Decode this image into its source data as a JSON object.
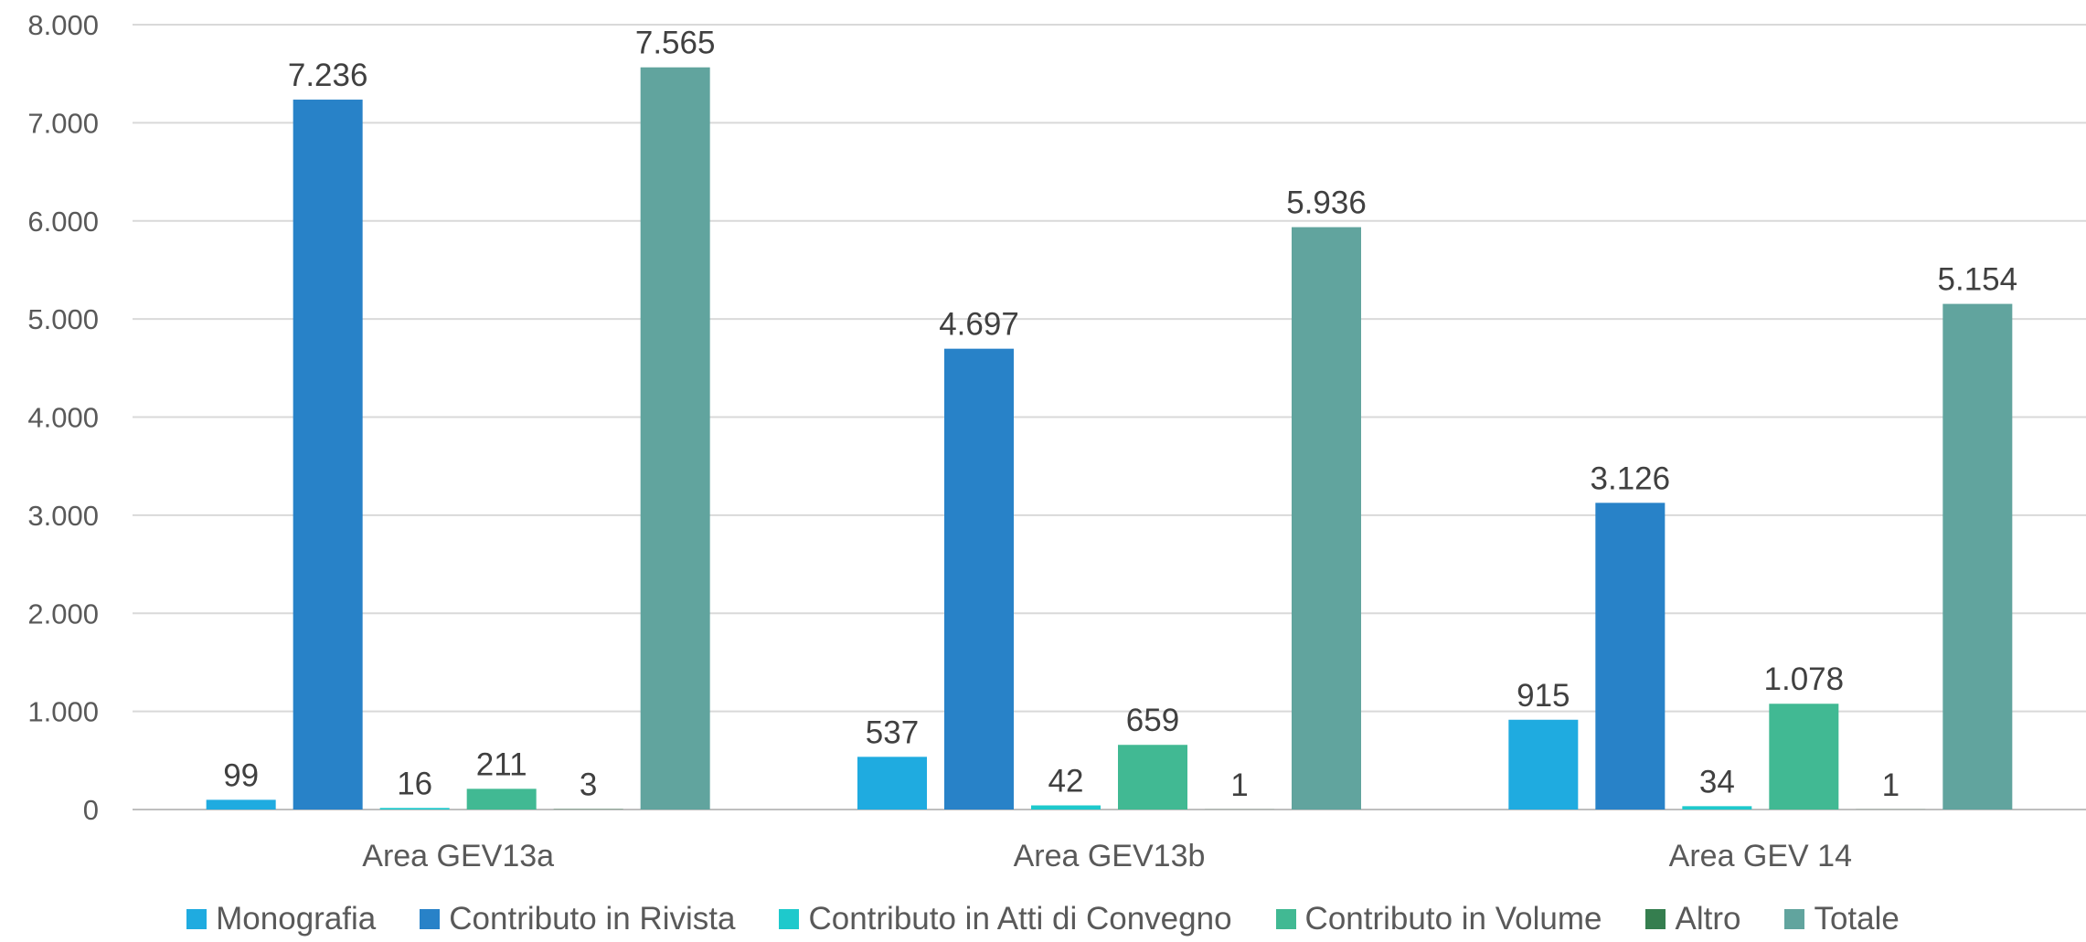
{
  "chart_data": {
    "type": "bar",
    "categories": [
      "Area GEV13a",
      "Area GEV13b",
      "Area GEV 14"
    ],
    "series": [
      {
        "name": "Monografia",
        "color": "#1fabe0",
        "values": [
          99,
          537,
          915
        ],
        "labels": [
          "99",
          "537",
          "915"
        ]
      },
      {
        "name": "Contributo in Rivista",
        "color": "#2882c8",
        "values": [
          7236,
          4697,
          3126
        ],
        "labels": [
          "7.236",
          "4.697",
          "3.126"
        ]
      },
      {
        "name": "Contributo in Atti di Convegno",
        "color": "#1ec9cc",
        "values": [
          16,
          42,
          34
        ],
        "labels": [
          "16",
          "42",
          "34"
        ]
      },
      {
        "name": "Contributo in Volume",
        "color": "#41b993",
        "values": [
          211,
          659,
          1078
        ],
        "labels": [
          "211",
          "659",
          "1.078"
        ]
      },
      {
        "name": "Altro",
        "color": "#357e4f",
        "values": [
          3,
          1,
          1
        ],
        "labels": [
          "3",
          "1",
          "1"
        ]
      },
      {
        "name": "Totale",
        "color": "#61a49e",
        "values": [
          7565,
          5936,
          5154
        ],
        "labels": [
          "7.565",
          "5.936",
          "5.154"
        ]
      }
    ],
    "y_ticks": [
      {
        "value": 0,
        "label": "0"
      },
      {
        "value": 1000,
        "label": "1.000"
      },
      {
        "value": 2000,
        "label": "2.000"
      },
      {
        "value": 3000,
        "label": "3.000"
      },
      {
        "value": 4000,
        "label": "4.000"
      },
      {
        "value": 5000,
        "label": "5.000"
      },
      {
        "value": 6000,
        "label": "6.000"
      },
      {
        "value": 7000,
        "label": "7.000"
      },
      {
        "value": 8000,
        "label": "8.000"
      }
    ],
    "ylim": [
      0,
      8000
    ],
    "grid": true,
    "legend_position": "bottom"
  }
}
